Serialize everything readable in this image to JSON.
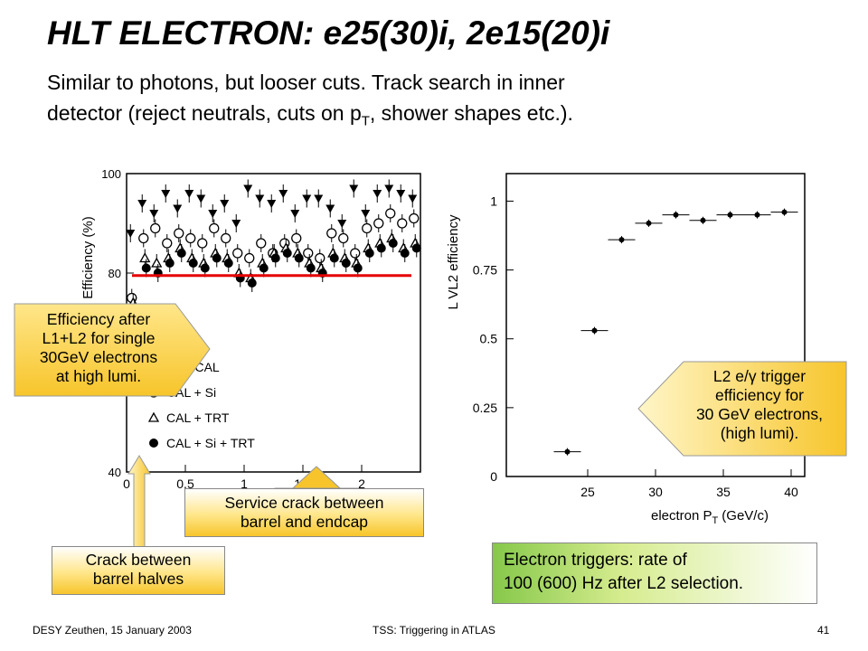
{
  "title": "HLT ELECTRON: e25(30)i, 2e15(20)i",
  "subtitle_line1": "Similar to photons, but looser cuts. Track search in inner",
  "subtitle_line2_a": "detector (reject neutrals, cuts on p",
  "subtitle_line2_sub": "T",
  "subtitle_line2_b": ", shower shapes etc.).",
  "colors": {
    "callout_fill": "#f7c52b",
    "red_line": "#e60000",
    "green_box": "#86c84a"
  },
  "callouts": {
    "efficiency": [
      "Efficiency after",
      "L1+L2 for single",
      "30GeV electrons",
      "at high lumi."
    ],
    "l2": [
      "L2 e/γ trigger",
      "efficiency for",
      "30 GeV electrons,",
      "(high lumi)."
    ],
    "service": [
      "Service crack between",
      "barrel and endcap"
    ],
    "crack": [
      "Crack between",
      "barrel halves"
    ]
  },
  "rate_box": [
    "Electron triggers: rate of",
    "100 (600) Hz after L2 selection."
  ],
  "footer": {
    "left": "DESY Zeuthen, 15 January 2003",
    "center": "TSS: Triggering in ATLAS",
    "page": "41"
  },
  "chart_data": [
    {
      "type": "scatter",
      "ylabel": "Efficiency (%)",
      "xlim": [
        0,
        2.5
      ],
      "ylim": [
        40,
        100
      ],
      "x_ticks": [
        "0",
        "0.5",
        "1",
        "1.5",
        "2"
      ],
      "y_ticks": [
        "40",
        "80",
        "100"
      ],
      "reference_line_y": 79.5,
      "legend": [
        "L2 CAL",
        "CAL + Si",
        "CAL + TRT",
        "CAL + Si + TRT"
      ],
      "x": [
        0.05,
        0.15,
        0.25,
        0.35,
        0.45,
        0.55,
        0.65,
        0.75,
        0.85,
        0.95,
        1.05,
        1.15,
        1.25,
        1.35,
        1.45,
        1.55,
        1.65,
        1.75,
        1.85,
        1.95,
        2.05,
        2.15,
        2.25,
        2.35,
        2.45
      ],
      "series": [
        {
          "name": "L2 CAL",
          "values": [
            88,
            94,
            92,
            96,
            93,
            96,
            95,
            92,
            94,
            90,
            97,
            95,
            94,
            96,
            92,
            95,
            95,
            93,
            90,
            97,
            92,
            96,
            97,
            96,
            95
          ]
        },
        {
          "name": "CAL + Si",
          "values": [
            75,
            87,
            89,
            86,
            88,
            87,
            86,
            89,
            87,
            84,
            83,
            86,
            84,
            86,
            87,
            84,
            83,
            88,
            87,
            84,
            89,
            90,
            92,
            90,
            91
          ]
        },
        {
          "name": "CAL + TRT",
          "values": [
            74,
            83,
            82,
            83,
            85,
            83,
            82,
            84,
            83,
            80,
            79,
            82,
            84,
            85,
            84,
            82,
            81,
            84,
            83,
            82,
            85,
            86,
            87,
            85,
            86
          ]
        },
        {
          "name": "CAL + Si + TRT",
          "values": [
            73,
            81,
            80,
            82,
            84,
            82,
            81,
            83,
            82,
            79,
            78,
            81,
            83,
            84,
            83,
            81,
            80,
            83,
            82,
            81,
            84,
            85,
            86,
            84,
            85
          ]
        }
      ]
    },
    {
      "type": "scatter",
      "ylabel": "L VL2 efficiency",
      "xlabel": "electron P",
      "xlabel_sub": "T",
      "xlabel_unit": "(GeV/c)",
      "xlim": [
        19,
        41
      ],
      "ylim": [
        0,
        1.1
      ],
      "x_ticks": [
        "25",
        "30",
        "35",
        "40"
      ],
      "y_ticks": [
        "0",
        "0.25",
        "0.5",
        "0.75",
        "1"
      ],
      "x": [
        23.5,
        25.5,
        27.5,
        29.5,
        31.5,
        33.5,
        35.5,
        37.5,
        39.5
      ],
      "values": [
        0.09,
        0.53,
        0.86,
        0.92,
        0.95,
        0.93,
        0.95,
        0.95,
        0.96
      ]
    }
  ]
}
